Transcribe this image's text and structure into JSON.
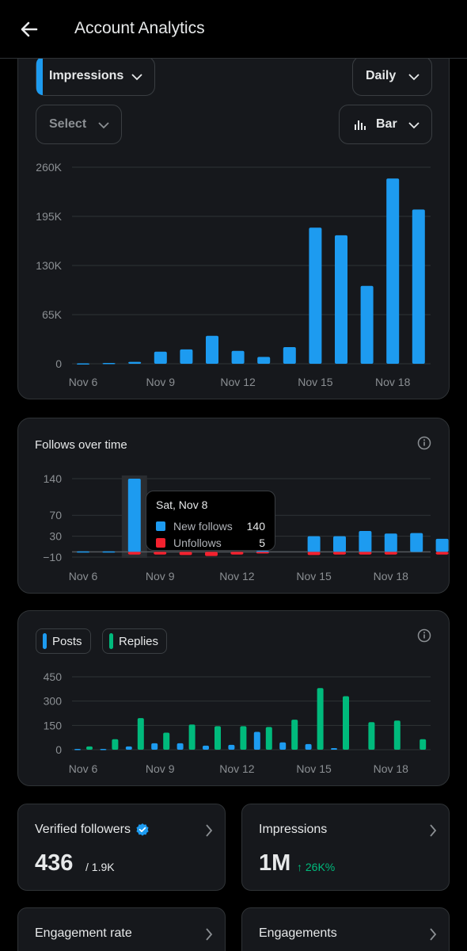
{
  "header": {
    "title": "Account Analytics"
  },
  "impressions_card": {
    "metric_select": "Impressions",
    "period_select": "Daily",
    "compare_select": "Select",
    "chart_type_select": "Bar"
  },
  "follows_card": {
    "title": "Follows over time",
    "tooltip": {
      "date": "Sat, Nov 8",
      "rows": [
        {
          "label": "New follows",
          "value": "140"
        },
        {
          "label": "Unfollows",
          "value": "5"
        }
      ]
    }
  },
  "posts_card": {
    "legend": [
      {
        "label": "Posts"
      },
      {
        "label": "Replies"
      }
    ]
  },
  "stats": {
    "verified_followers": {
      "title": "Verified followers",
      "value": "436",
      "sub": "/ 1.9K"
    },
    "impressions": {
      "title": "Impressions",
      "value": "1M",
      "delta": "↑ 26K%"
    },
    "engagement_rate": {
      "title": "Engagement rate"
    },
    "engagements": {
      "title": "Engagements"
    }
  },
  "colors": {
    "blue": "#1d9bf0",
    "green": "#00ba7c",
    "red": "#f4212e"
  },
  "chart_data": [
    {
      "type": "bar",
      "ylim": [
        0,
        260000
      ],
      "yticks": [
        "260K",
        "195K",
        "130K",
        "65K",
        "0"
      ],
      "ytick_values": [
        260000,
        195000,
        130000,
        65000,
        0
      ],
      "xticks": [
        "Nov 6",
        "Nov 9",
        "Nov 12",
        "Nov 15",
        "Nov 18"
      ],
      "xtick_index": [
        0,
        3,
        6,
        9,
        12
      ],
      "series": [
        {
          "values": [
            500,
            1000,
            2500,
            16000,
            19000,
            37000,
            17000,
            9000,
            22000,
            180000,
            170000,
            103000,
            245000,
            204000
          ]
        }
      ]
    },
    {
      "type": "bar",
      "ylim": [
        -10,
        140
      ],
      "yticks": [
        "140",
        "70",
        "30",
        "−10"
      ],
      "ytick_values": [
        140,
        70,
        30,
        -10
      ],
      "xticks": [
        "Nov 6",
        "Nov 9",
        "Nov 12",
        "Nov 15",
        "Nov 18"
      ],
      "xtick_index": [
        0,
        3,
        6,
        9,
        12
      ],
      "highlight_index": 2,
      "series": [
        {
          "name": "New follows",
          "values": [
            1,
            1,
            140,
            0,
            0,
            0,
            0,
            2,
            0,
            30,
            30,
            40,
            35,
            36,
            25
          ]
        },
        {
          "name": "Unfollows",
          "values": [
            0,
            0,
            -5,
            -5,
            -6,
            -8,
            -5,
            -3,
            0,
            -6,
            -5,
            -5,
            -5,
            0,
            -5
          ]
        }
      ]
    },
    {
      "type": "bar",
      "ylim": [
        0,
        450
      ],
      "yticks": [
        "450",
        "300",
        "150",
        "0"
      ],
      "ytick_values": [
        450,
        300,
        150,
        0
      ],
      "xticks": [
        "Nov 6",
        "Nov 9",
        "Nov 12",
        "Nov 15",
        "Nov 18"
      ],
      "xtick_index": [
        0,
        3,
        6,
        9,
        12
      ],
      "series": [
        {
          "name": "Posts",
          "values": [
            5,
            5,
            20,
            40,
            40,
            25,
            30,
            110,
            45,
            35,
            10,
            0,
            0,
            0
          ]
        },
        {
          "name": "Replies",
          "values": [
            20,
            65,
            195,
            105,
            155,
            145,
            145,
            140,
            185,
            380,
            330,
            170,
            180,
            65
          ]
        }
      ]
    }
  ]
}
